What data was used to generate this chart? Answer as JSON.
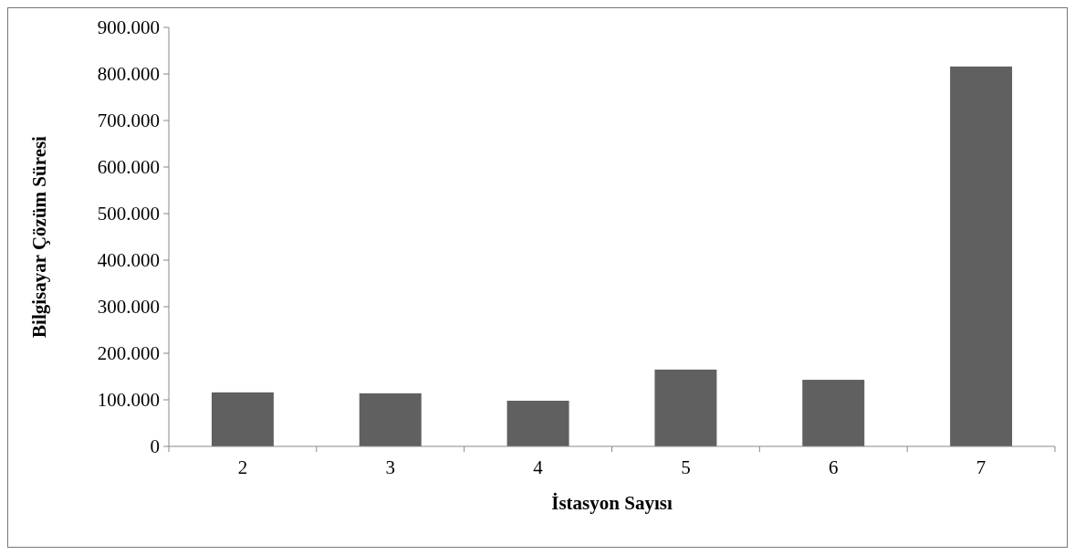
{
  "chart_data": {
    "type": "bar",
    "xlabel": "İstasyon Sayısı",
    "ylabel": "Bilgisayar Çözüm Süresi",
    "categories": [
      "2",
      "3",
      "4",
      "5",
      "6",
      "7"
    ],
    "values": [
      116000,
      114000,
      98000,
      165000,
      143000,
      816000
    ],
    "color": "#606060",
    "ylim": [
      0,
      900000
    ],
    "yticks": [
      0,
      {
        "value": 100000,
        "label": "100.000"
      },
      {
        "value": 200000,
        "label": "200.000"
      },
      {
        "value": 300000,
        "label": "300.000"
      },
      {
        "value": 400000,
        "label": "400.000"
      },
      {
        "value": 500000,
        "label": "500.000"
      },
      {
        "value": 600000,
        "label": "600.000"
      },
      {
        "value": 700000,
        "label": "700.000"
      },
      {
        "value": 800000,
        "label": "800.000"
      },
      {
        "value": 900000,
        "label": "900.000"
      }
    ],
    "grid": false
  }
}
